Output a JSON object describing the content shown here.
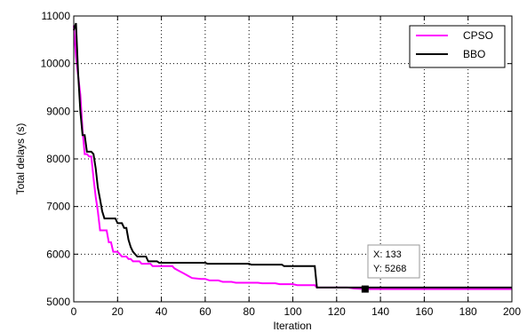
{
  "chart_data": {
    "type": "line",
    "title": "",
    "xlabel": "Iteration",
    "ylabel": "Total delays (s)",
    "xlim": [
      0,
      200
    ],
    "ylim": [
      5000,
      11000
    ],
    "xticks": [
      0,
      20,
      40,
      60,
      80,
      100,
      120,
      140,
      160,
      180,
      200
    ],
    "yticks": [
      5000,
      6000,
      7000,
      8000,
      9000,
      10000,
      11000
    ],
    "grid": true,
    "legend_position": "top-right",
    "series": [
      {
        "name": "CPSO",
        "color": "#ff00ff",
        "points": [
          [
            0,
            10800
          ],
          [
            1,
            10150
          ],
          [
            2,
            9750
          ],
          [
            3,
            9350
          ],
          [
            4,
            8600
          ],
          [
            5,
            8100
          ],
          [
            6,
            8100
          ],
          [
            7,
            8050
          ],
          [
            8,
            8050
          ],
          [
            9,
            7600
          ],
          [
            10,
            7200
          ],
          [
            11,
            6900
          ],
          [
            12,
            6500
          ],
          [
            13,
            6500
          ],
          [
            14,
            6500
          ],
          [
            15,
            6500
          ],
          [
            16,
            6250
          ],
          [
            17,
            6250
          ],
          [
            18,
            6050
          ],
          [
            19,
            6050
          ],
          [
            20,
            6050
          ],
          [
            21,
            6000
          ],
          [
            22,
            5950
          ],
          [
            23,
            5950
          ],
          [
            24,
            5950
          ],
          [
            25,
            5900
          ],
          [
            26,
            5900
          ],
          [
            27,
            5850
          ],
          [
            30,
            5850
          ],
          [
            31,
            5800
          ],
          [
            35,
            5800
          ],
          [
            36,
            5750
          ],
          [
            45,
            5750
          ],
          [
            46,
            5700
          ],
          [
            48,
            5650
          ],
          [
            50,
            5600
          ],
          [
            52,
            5550
          ],
          [
            54,
            5500
          ],
          [
            58,
            5480
          ],
          [
            60,
            5480
          ],
          [
            62,
            5450
          ],
          [
            66,
            5450
          ],
          [
            68,
            5420
          ],
          [
            72,
            5420
          ],
          [
            74,
            5400
          ],
          [
            84,
            5400
          ],
          [
            86,
            5390
          ],
          [
            92,
            5390
          ],
          [
            94,
            5370
          ],
          [
            100,
            5370
          ],
          [
            102,
            5350
          ],
          [
            110,
            5350
          ],
          [
            111,
            5300
          ],
          [
            125,
            5300
          ],
          [
            128,
            5280
          ],
          [
            133,
            5268
          ],
          [
            200,
            5268
          ]
        ]
      },
      {
        "name": "BBO",
        "color": "#000000",
        "points": [
          [
            0,
            10700
          ],
          [
            1,
            10850
          ],
          [
            2,
            9800
          ],
          [
            3,
            9000
          ],
          [
            4,
            8500
          ],
          [
            5,
            8500
          ],
          [
            6,
            8150
          ],
          [
            7,
            8150
          ],
          [
            8,
            8150
          ],
          [
            9,
            8100
          ],
          [
            10,
            7800
          ],
          [
            11,
            7400
          ],
          [
            12,
            7150
          ],
          [
            13,
            6900
          ],
          [
            14,
            6750
          ],
          [
            15,
            6750
          ],
          [
            19,
            6750
          ],
          [
            20,
            6650
          ],
          [
            22,
            6650
          ],
          [
            23,
            6550
          ],
          [
            24,
            6550
          ],
          [
            25,
            6300
          ],
          [
            26,
            6150
          ],
          [
            27,
            6050
          ],
          [
            28,
            6000
          ],
          [
            29,
            5950
          ],
          [
            33,
            5950
          ],
          [
            34,
            5850
          ],
          [
            38,
            5850
          ],
          [
            39,
            5820
          ],
          [
            60,
            5820
          ],
          [
            61,
            5800
          ],
          [
            80,
            5800
          ],
          [
            81,
            5780
          ],
          [
            95,
            5780
          ],
          [
            96,
            5750
          ],
          [
            110,
            5750
          ],
          [
            111,
            5300
          ],
          [
            200,
            5300
          ]
        ]
      }
    ],
    "datatip": {
      "x": 133,
      "y": 5268,
      "x_label": "X: 133",
      "y_label": "Y: 5268"
    }
  }
}
